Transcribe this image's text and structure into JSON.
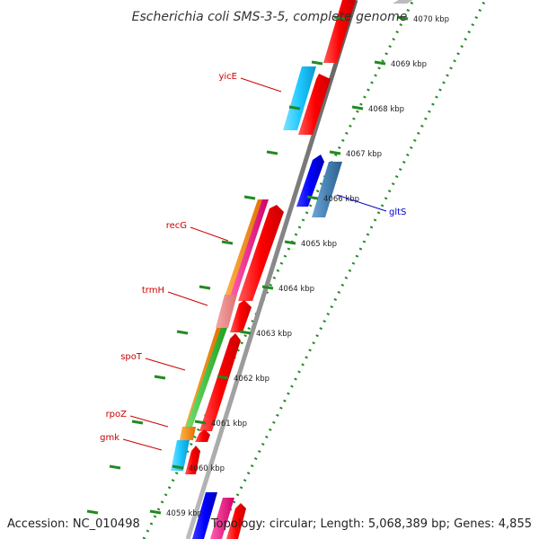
{
  "title": "Escherichia coli SMS-3-5, complete genome",
  "footer": {
    "accession": "Accession: NC_010498",
    "summary": "Topology: circular; Length: 5,068,389 bp; Genes: 4,855"
  },
  "ruler": {
    "unit": "kbp",
    "ticks": [
      "4070 kbp",
      "4069 kbp",
      "4068 kbp",
      "4067 kbp",
      "4066 kbp",
      "4065 kbp",
      "4064 kbp",
      "4063 kbp",
      "4062 kbp",
      "4061 kbp",
      "4060 kbp",
      "4059 kbp"
    ]
  },
  "gene_labels": [
    {
      "name": "yicE",
      "strand": "forward",
      "color": "#cc0000"
    },
    {
      "name": "recG",
      "strand": "forward",
      "color": "#cc0000"
    },
    {
      "name": "trmH",
      "strand": "forward",
      "color": "#cc0000"
    },
    {
      "name": "spoT",
      "strand": "forward",
      "color": "#cc0000"
    },
    {
      "name": "rpoZ",
      "strand": "forward",
      "color": "#cc0000"
    },
    {
      "name": "gmk",
      "strand": "forward",
      "color": "#cc0000"
    },
    {
      "name": "gltS",
      "strand": "reverse",
      "color": "#0000cc"
    }
  ],
  "feature_colors": {
    "cds_forward": "#ff0000",
    "cds_reverse": "#0000ff",
    "steelblue": "#4682b4",
    "cyan": "#1ec8ff",
    "orange": "#ff8c00",
    "green": "#32cd32",
    "magenta": "#ff1493",
    "pink": "#f08080",
    "backbone": "#888888",
    "tick_green": "#228b22"
  }
}
